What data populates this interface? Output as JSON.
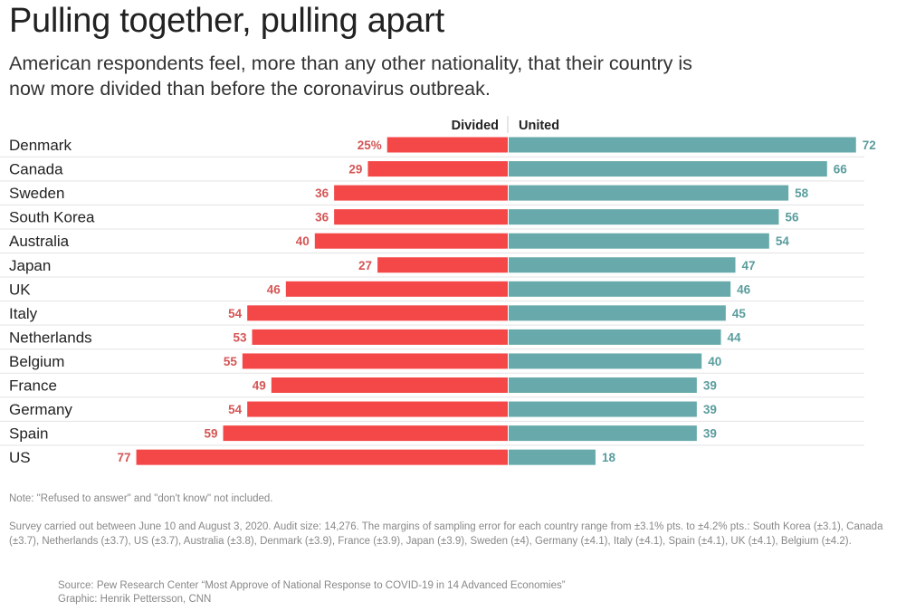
{
  "title": "Pulling together, pulling apart",
  "subtitle": "American respondents feel, more than any other nationality, that their country is now more divided than before the coronavirus outbreak.",
  "chart_data": {
    "type": "bar",
    "orientation": "diverging-horizontal",
    "categories": [
      "Denmark",
      "Canada",
      "Sweden",
      "South Korea",
      "Australia",
      "Japan",
      "UK",
      "Italy",
      "Netherlands",
      "Belgium",
      "France",
      "Germany",
      "Spain",
      "US"
    ],
    "series": [
      {
        "name": "Divided",
        "color": "#f44848",
        "label_color": "#d65555",
        "values": [
          25,
          29,
          36,
          36,
          40,
          27,
          46,
          54,
          53,
          55,
          49,
          54,
          59,
          77
        ]
      },
      {
        "name": "United",
        "color": "#68aaab",
        "label_color": "#5a9c9d",
        "values": [
          72,
          66,
          58,
          56,
          54,
          47,
          46,
          45,
          44,
          40,
          39,
          39,
          39,
          18
        ]
      }
    ],
    "first_label_suffix": "%",
    "unit": "%"
  },
  "notes": {
    "note": "Note: \"Refused to answer\" and \"don't know\" not included.",
    "survey": "Survey carried out between June 10 and August 3, 2020. Audit size: 14,276. The margins of sampling error for each country range from ±3.1% pts. to ±4.2% pts.: South Korea (±3.1), Canada (±3.7), Netherlands (±3.7), US (±3.7), Australia (±3.8), Denmark (±3.9), France (±3.9), Japan  (±3.9), Sweden (±4), Germany (±4.1), Italy (±4.1), Spain (±4.1), UK (±4.1),  Belgium (±4.2).",
    "source": "Source: Pew Research Center “Most Approve of National Response to COVID-19 in 14 Advanced Economies”",
    "graphic": "Graphic: Henrik Pettersson, CNN"
  }
}
